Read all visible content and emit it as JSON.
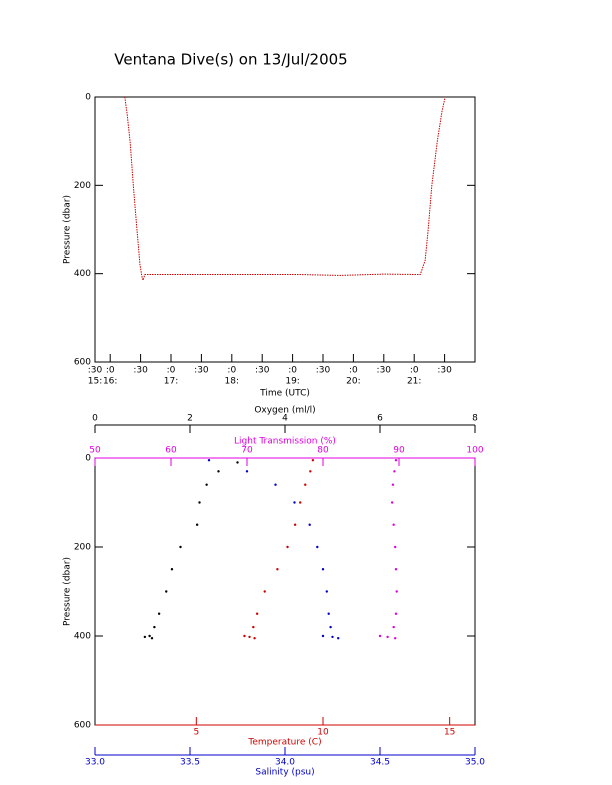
{
  "title": "Ventana Dive(s) on 13/Jul/2005",
  "chart_data": [
    {
      "type": "line",
      "xlabel": "Time (UTC)",
      "ylabel": "Pressure (dbar)",
      "color": "#cc0000",
      "x": [
        16.24,
        16.28,
        16.33,
        16.38,
        16.44,
        16.49,
        16.52,
        16.54,
        16.57,
        17.48,
        18.5,
        19.12,
        19.78,
        20.5,
        21.1,
        21.18,
        21.23,
        21.29,
        21.38,
        21.46,
        21.51
      ],
      "values": [
        0,
        40,
        105,
        200,
        300,
        380,
        405,
        415,
        402,
        402,
        402,
        402,
        404,
        401,
        402,
        370,
        300,
        200,
        100,
        30,
        0
      ],
      "xlim": [
        15.75,
        22.0
      ],
      "xticks": [
        {
          "value": 15.75,
          "label": ":30"
        },
        {
          "value": 16,
          "label": ":0"
        },
        {
          "value": 16.5,
          "label": ":30"
        },
        {
          "value": 17,
          "label": ":0"
        },
        {
          "value": 17.5,
          "label": ":30"
        },
        {
          "value": 18,
          "label": ":0"
        },
        {
          "value": 18.5,
          "label": ":30"
        },
        {
          "value": 19,
          "label": ":0"
        },
        {
          "value": 19.5,
          "label": ":30"
        },
        {
          "value": 20,
          "label": ":0"
        },
        {
          "value": 20.5,
          "label": ":30"
        },
        {
          "value": 21,
          "label": ":0"
        },
        {
          "value": 21.5,
          "label": ":30"
        }
      ],
      "xticks_hour": [
        {
          "value": 15.75,
          "label": "15:"
        },
        {
          "value": 16,
          "label": "16:"
        },
        {
          "value": 17,
          "label": "17:"
        },
        {
          "value": 18,
          "label": "18:"
        },
        {
          "value": 19,
          "label": "19:"
        },
        {
          "value": 20,
          "label": "20:"
        },
        {
          "value": 21,
          "label": "21:"
        }
      ],
      "ylim": [
        0,
        600
      ],
      "y_reversed": true,
      "yticks": [
        0,
        200,
        400,
        600
      ]
    },
    {
      "type": "scatter",
      "ylabel": "Pressure (dbar)",
      "ylim": [
        0,
        600
      ],
      "y_reversed": true,
      "yticks": [
        0,
        200,
        400,
        600
      ],
      "axes": [
        {
          "label": "Oxygen (ml/l)",
          "color": "#000000",
          "lim": [
            0,
            8
          ],
          "ticks": [
            0,
            2,
            4,
            6,
            8
          ]
        },
        {
          "label": "Light Transmission (%)",
          "color": "#e000e0",
          "lim": [
            50,
            100
          ],
          "ticks": [
            50,
            60,
            70,
            80,
            90,
            100
          ]
        },
        {
          "label": "Temperature (C)",
          "color": "#d00000",
          "lim": [
            1,
            16
          ],
          "ticks": [
            5,
            10,
            15
          ]
        },
        {
          "label": "Salinity (psu)",
          "color": "#0000cc",
          "lim": [
            33,
            35
          ],
          "ticks": [
            {
              "value": 33,
              "label": "33.0"
            },
            33.5,
            {
              "value": 34,
              "label": "34.0"
            },
            34.5,
            {
              "value": 35,
              "label": "35.0"
            }
          ]
        }
      ],
      "series": [
        {
          "axis": 0,
          "color": "#000000",
          "pressure": [
            10,
            30,
            60,
            100,
            150,
            200,
            250,
            300,
            350,
            380,
            400,
            402,
            405
          ],
          "values": [
            3.0,
            2.6,
            2.35,
            2.2,
            2.15,
            1.8,
            1.62,
            1.5,
            1.35,
            1.25,
            1.15,
            1.05,
            1.2
          ]
        },
        {
          "axis": 1,
          "color": "#e000e0",
          "pressure": [
            5,
            30,
            60,
            100,
            150,
            200,
            250,
            300,
            350,
            380,
            400,
            402,
            405
          ],
          "values": [
            89.6,
            89.4,
            89.2,
            89.1,
            89.3,
            89.5,
            89.6,
            89.7,
            89.6,
            89.3,
            87.5,
            88.5,
            89.5
          ]
        },
        {
          "axis": 2,
          "color": "#d00000",
          "pressure": [
            5,
            30,
            60,
            100,
            150,
            200,
            250,
            300,
            350,
            380,
            400,
            402,
            405
          ],
          "values": [
            9.6,
            9.5,
            9.3,
            9.1,
            8.9,
            8.6,
            8.2,
            7.7,
            7.4,
            7.25,
            6.9,
            7.1,
            7.3
          ]
        },
        {
          "axis": 3,
          "color": "#0000cc",
          "pressure": [
            5,
            30,
            60,
            100,
            150,
            200,
            250,
            300,
            350,
            380,
            400,
            402,
            405
          ],
          "values": [
            33.6,
            33.8,
            33.95,
            34.05,
            34.13,
            34.17,
            34.2,
            34.22,
            34.23,
            34.24,
            34.2,
            34.25,
            34.28
          ]
        }
      ]
    }
  ]
}
